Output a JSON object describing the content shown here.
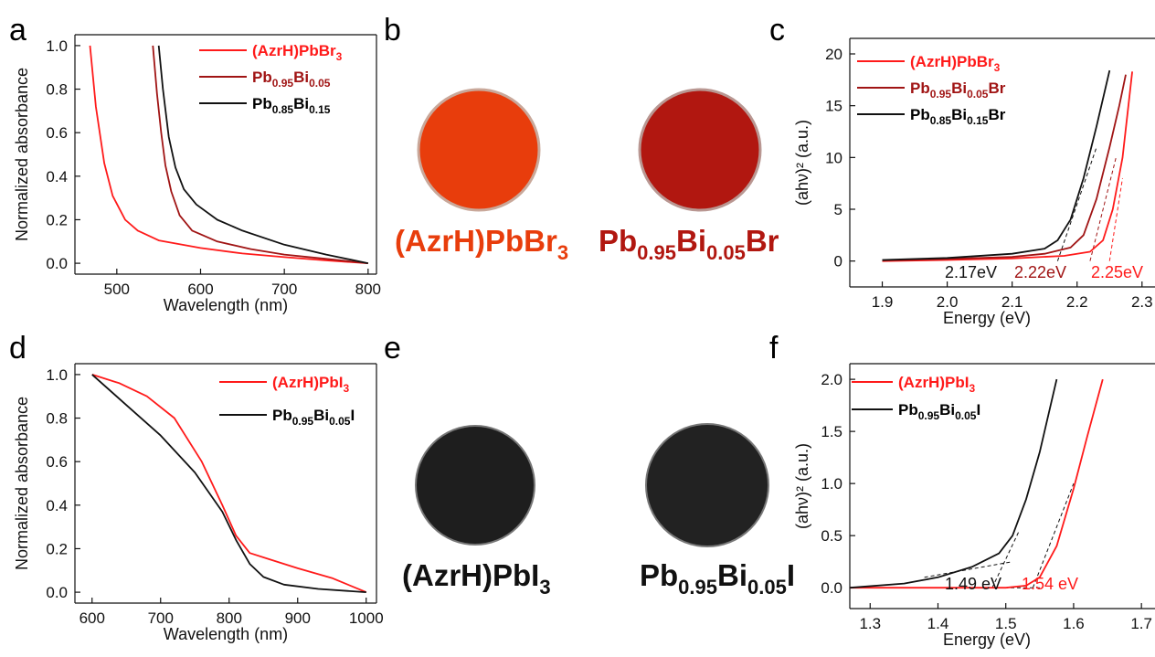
{
  "panel_labels": [
    "a",
    "b",
    "c",
    "d",
    "e",
    "f"
  ],
  "colors": {
    "red": "#ff1a1a",
    "darkred": "#a01414",
    "black": "#111111",
    "orange_disk": "#e83d0c",
    "darkred_disk": "#b11710",
    "black_disk": "#1e1e1e"
  },
  "photos": {
    "b": [
      {
        "label": "(AzrH)PbBr",
        "sub": "3",
        "color": "#e83d0c"
      },
      {
        "label": "Pb",
        "sub1": "0.95",
        "mid": "Bi",
        "sub2": "0.05",
        "tail": "Br",
        "color": "#b11710"
      }
    ],
    "e": [
      {
        "label": "(AzrH)PbI",
        "sub": "3",
        "color": "#111111"
      },
      {
        "label": "Pb",
        "sub1": "0.95",
        "mid": "Bi",
        "sub2": "0.05",
        "tail": "I",
        "color": "#111111"
      }
    ]
  },
  "chart_data": [
    {
      "panel": "a",
      "type": "line",
      "xlabel": "Wavelength (nm)",
      "ylabel": "Normalized absorbance",
      "xlim": [
        450,
        810
      ],
      "ylim": [
        -0.05,
        1.05
      ],
      "xticks": [
        500,
        600,
        700,
        800
      ],
      "yticks": [
        0.0,
        0.2,
        0.4,
        0.6,
        0.8,
        1.0
      ],
      "legend_position": "top-right",
      "series": [
        {
          "name": "(AzrH)PbBr3",
          "color": "#ff1a1a",
          "points": [
            [
              468,
              1.0
            ],
            [
              475,
              0.72
            ],
            [
              485,
              0.46
            ],
            [
              495,
              0.31
            ],
            [
              510,
              0.2
            ],
            [
              525,
              0.15
            ],
            [
              550,
              0.105
            ],
            [
              600,
              0.07
            ],
            [
              650,
              0.045
            ],
            [
              700,
              0.028
            ],
            [
              750,
              0.013
            ],
            [
              800,
              0.0
            ]
          ]
        },
        {
          "name": "Pb0.95Bi0.05",
          "color": "#a01414",
          "points": [
            [
              543,
              1.0
            ],
            [
              548,
              0.78
            ],
            [
              553,
              0.6
            ],
            [
              558,
              0.45
            ],
            [
              565,
              0.33
            ],
            [
              575,
              0.22
            ],
            [
              590,
              0.15
            ],
            [
              620,
              0.1
            ],
            [
              660,
              0.065
            ],
            [
              700,
              0.04
            ],
            [
              750,
              0.02
            ],
            [
              800,
              0.0
            ]
          ]
        },
        {
          "name": "Pb0.85Bi0.15",
          "color": "#111111",
          "points": [
            [
              550,
              1.0
            ],
            [
              555,
              0.8
            ],
            [
              562,
              0.58
            ],
            [
              570,
              0.44
            ],
            [
              580,
              0.34
            ],
            [
              595,
              0.27
            ],
            [
              620,
              0.2
            ],
            [
              650,
              0.15
            ],
            [
              700,
              0.085
            ],
            [
              750,
              0.04
            ],
            [
              800,
              0.0
            ]
          ]
        }
      ]
    },
    {
      "panel": "c",
      "type": "line",
      "xlabel": "Energy (eV)",
      "ylabel": "(ahν)² (a.u.)",
      "xlim": [
        1.85,
        2.32
      ],
      "ylim": [
        -2.5,
        21.5
      ],
      "xticks": [
        1.9,
        2.0,
        2.1,
        2.2,
        2.3
      ],
      "yticks": [
        0,
        5,
        10,
        15,
        20
      ],
      "legend_position": "top-left",
      "series": [
        {
          "name": "(AzrH)PbBr3",
          "color": "#ff1a1a",
          "points": [
            [
              1.9,
              0.0
            ],
            [
              2.0,
              0.1
            ],
            [
              2.1,
              0.25
            ],
            [
              2.18,
              0.5
            ],
            [
              2.22,
              0.9
            ],
            [
              2.24,
              2.0
            ],
            [
              2.255,
              5.0
            ],
            [
              2.27,
              10.0
            ],
            [
              2.285,
              18.3
            ]
          ]
        },
        {
          "name": "Pb0.95Bi0.05Br",
          "color": "#a01414",
          "points": [
            [
              1.9,
              0.05
            ],
            [
              2.0,
              0.2
            ],
            [
              2.1,
              0.4
            ],
            [
              2.15,
              0.7
            ],
            [
              2.19,
              1.3
            ],
            [
              2.21,
              2.5
            ],
            [
              2.23,
              6.0
            ],
            [
              2.25,
              11.0
            ],
            [
              2.265,
              15.0
            ],
            [
              2.275,
              18.0
            ]
          ]
        },
        {
          "name": "Pb0.85Bi0.15Br",
          "color": "#111111",
          "points": [
            [
              1.9,
              0.1
            ],
            [
              2.0,
              0.3
            ],
            [
              2.1,
              0.7
            ],
            [
              2.15,
              1.2
            ],
            [
              2.17,
              2.0
            ],
            [
              2.19,
              4.0
            ],
            [
              2.21,
              8.0
            ],
            [
              2.23,
              13.0
            ],
            [
              2.25,
              18.4
            ]
          ]
        }
      ],
      "annotations": [
        {
          "text": "2.17eV",
          "color": "#111111"
        },
        {
          "text": "2.22eV",
          "color": "#a01414"
        },
        {
          "text": "2.25eV",
          "color": "#ff1a1a"
        }
      ],
      "tangents": [
        {
          "color": "#111111",
          "from": [
            2.17,
            0.0
          ],
          "to": [
            2.23,
            11.0
          ]
        },
        {
          "color": "#a01414",
          "from": [
            2.22,
            0.0
          ],
          "to": [
            2.26,
            10.0
          ]
        },
        {
          "color": "#ff1a1a",
          "from": [
            2.25,
            0.0
          ],
          "to": [
            2.27,
            8.0
          ]
        }
      ]
    },
    {
      "panel": "d",
      "type": "line",
      "xlabel": "Wavelength (nm)",
      "ylabel": "Normalized absorbance",
      "xlim": [
        575,
        1015
      ],
      "ylim": [
        -0.05,
        1.05
      ],
      "xticks": [
        600,
        700,
        800,
        900,
        1000
      ],
      "yticks": [
        0.0,
        0.2,
        0.4,
        0.6,
        0.8,
        1.0
      ],
      "legend_position": "top-right",
      "series": [
        {
          "name": "(AzrH)PbI3",
          "color": "#ff1a1a",
          "points": [
            [
              600,
              1.0
            ],
            [
              640,
              0.96
            ],
            [
              680,
              0.9
            ],
            [
              720,
              0.8
            ],
            [
              760,
              0.6
            ],
            [
              790,
              0.4
            ],
            [
              810,
              0.26
            ],
            [
              830,
              0.18
            ],
            [
              860,
              0.15
            ],
            [
              900,
              0.11
            ],
            [
              950,
              0.065
            ],
            [
              1000,
              0.0
            ]
          ]
        },
        {
          "name": "Pb0.95Bi0.05I",
          "color": "#111111",
          "points": [
            [
              600,
              1.0
            ],
            [
              650,
              0.86
            ],
            [
              700,
              0.72
            ],
            [
              750,
              0.55
            ],
            [
              790,
              0.37
            ],
            [
              810,
              0.24
            ],
            [
              830,
              0.13
            ],
            [
              850,
              0.07
            ],
            [
              880,
              0.035
            ],
            [
              930,
              0.015
            ],
            [
              1000,
              0.0
            ]
          ]
        }
      ]
    },
    {
      "panel": "f",
      "type": "line",
      "xlabel": "Energy (eV)",
      "ylabel": "(ahν)² (a.u.)",
      "xlim": [
        1.27,
        1.72
      ],
      "ylim": [
        -0.2,
        2.15
      ],
      "xticks": [
        1.3,
        1.4,
        1.5,
        1.6,
        1.7
      ],
      "yticks": [
        0.0,
        0.5,
        1.0,
        1.5,
        2.0
      ],
      "legend_position": "top-left",
      "series": [
        {
          "name": "(AzrH)PbI3",
          "color": "#ff1a1a",
          "points": [
            [
              1.27,
              0.0
            ],
            [
              1.5,
              0.0
            ],
            [
              1.53,
              0.02
            ],
            [
              1.55,
              0.1
            ],
            [
              1.575,
              0.4
            ],
            [
              1.6,
              0.95
            ],
            [
              1.62,
              1.45
            ],
            [
              1.643,
              2.0
            ]
          ]
        },
        {
          "name": "Pb0.95Bi0.05I",
          "color": "#111111",
          "points": [
            [
              1.27,
              0.0
            ],
            [
              1.35,
              0.04
            ],
            [
              1.4,
              0.1
            ],
            [
              1.45,
              0.2
            ],
            [
              1.49,
              0.33
            ],
            [
              1.51,
              0.5
            ],
            [
              1.53,
              0.85
            ],
            [
              1.55,
              1.3
            ],
            [
              1.575,
              2.0
            ]
          ]
        }
      ],
      "annotations": [
        {
          "text": "1.49 eV",
          "color": "#111111"
        },
        {
          "text": "1.54 eV",
          "color": "#ff1a1a"
        }
      ],
      "tangents": [
        {
          "color": "#111111",
          "from": [
            1.48,
            0.0
          ],
          "to": [
            1.52,
            0.55
          ]
        },
        {
          "color": "#111111",
          "from": [
            1.38,
            0.1
          ],
          "to": [
            1.51,
            0.25
          ]
        },
        {
          "color": "#111111",
          "from": [
            1.46,
            0.0
          ],
          "to": [
            1.55,
            0.0
          ]
        },
        {
          "color": "#111111",
          "from": [
            1.54,
            0.0
          ],
          "to": [
            1.6,
            1.0
          ]
        }
      ]
    }
  ]
}
